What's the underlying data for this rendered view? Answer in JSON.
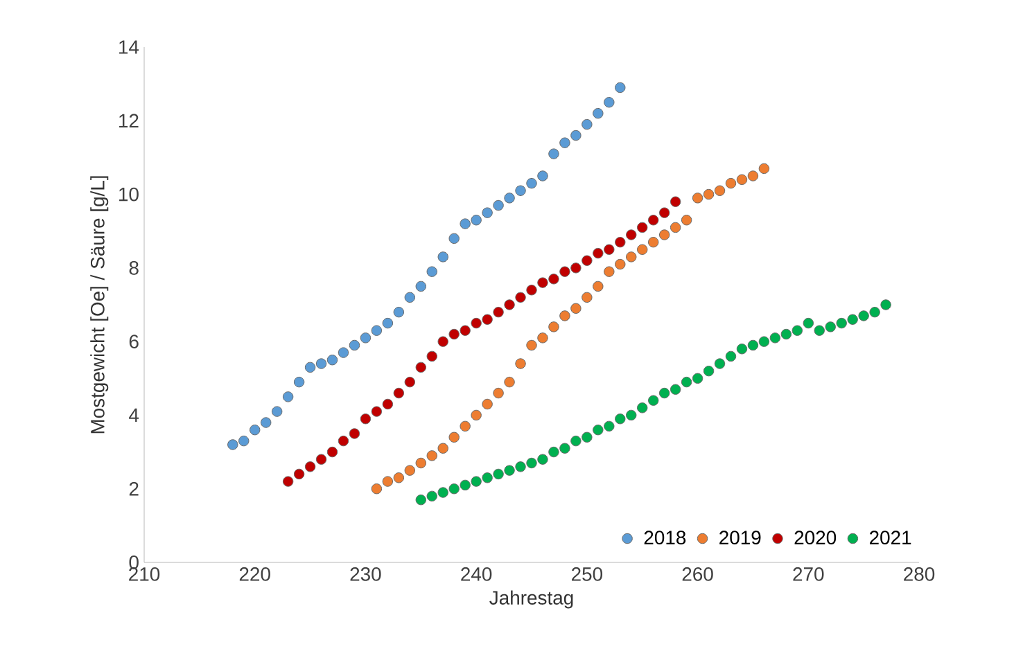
{
  "chart_data": {
    "type": "scatter",
    "xlabel": "Jahrestag",
    "ylabel": "Mostgewicht [Oe] / Säure [g/L]",
    "xlim": [
      210,
      280
    ],
    "xticks": [
      210,
      220,
      230,
      240,
      250,
      260,
      270,
      280
    ],
    "ylim": [
      0,
      14
    ],
    "yticks": [
      0,
      2,
      4,
      6,
      8,
      10,
      12,
      14
    ],
    "grid": false,
    "legend": "bottom right",
    "marker": "circle",
    "series": [
      {
        "name": "2018",
        "color": "#5b9bd5",
        "x": [
          218,
          219,
          220,
          221,
          222,
          223,
          224,
          225,
          226,
          227,
          228,
          229,
          230,
          231,
          232,
          233,
          234,
          235,
          236,
          237,
          238,
          239,
          240,
          241,
          242,
          243,
          244,
          245,
          246,
          247,
          248,
          249,
          250,
          251,
          252,
          253
        ],
        "values": [
          3.2,
          3.3,
          3.6,
          3.8,
          4.1,
          4.5,
          4.9,
          5.3,
          5.4,
          5.5,
          5.7,
          5.9,
          6.1,
          6.3,
          6.5,
          6.8,
          7.2,
          7.5,
          7.9,
          8.3,
          8.8,
          9.2,
          9.3,
          9.5,
          9.7,
          9.9,
          10.1,
          10.3,
          10.5,
          11.1,
          11.4,
          11.6,
          11.9,
          12.2,
          12.5,
          12.9
        ]
      },
      {
        "name": "2019",
        "color": "#ed7d31",
        "x": [
          231,
          232,
          233,
          234,
          235,
          236,
          237,
          238,
          239,
          240,
          241,
          242,
          243,
          244,
          245,
          246,
          247,
          248,
          249,
          250,
          251,
          252,
          253,
          254,
          255,
          256,
          257,
          258,
          259,
          260,
          261,
          262,
          263,
          264,
          265,
          266
        ],
        "values": [
          2.0,
          2.2,
          2.3,
          2.5,
          2.7,
          2.9,
          3.1,
          3.4,
          3.7,
          4.0,
          4.3,
          4.6,
          4.9,
          5.4,
          5.9,
          6.1,
          6.4,
          6.7,
          6.9,
          7.2,
          7.5,
          7.9,
          8.1,
          8.3,
          8.5,
          8.7,
          8.9,
          9.1,
          9.3,
          9.9,
          10.0,
          10.1,
          10.3,
          10.4,
          10.5,
          10.7
        ]
      },
      {
        "name": "2020",
        "color": "#c00000",
        "x": [
          223,
          224,
          225,
          226,
          227,
          228,
          229,
          230,
          231,
          232,
          233,
          234,
          235,
          236,
          237,
          238,
          239,
          240,
          241,
          242,
          243,
          244,
          245,
          246,
          247,
          248,
          249,
          250,
          251,
          252,
          253,
          254,
          255,
          256,
          257,
          258
        ],
        "values": [
          2.2,
          2.4,
          2.6,
          2.8,
          3.0,
          3.3,
          3.5,
          3.9,
          4.1,
          4.3,
          4.6,
          4.9,
          5.3,
          5.6,
          6.0,
          6.2,
          6.3,
          6.5,
          6.6,
          6.8,
          7.0,
          7.2,
          7.4,
          7.6,
          7.7,
          7.9,
          8.0,
          8.2,
          8.4,
          8.5,
          8.7,
          8.9,
          9.1,
          9.3,
          9.5,
          9.8
        ]
      },
      {
        "name": "2021",
        "color": "#00b050",
        "x": [
          235,
          236,
          237,
          238,
          239,
          240,
          241,
          242,
          243,
          244,
          245,
          246,
          247,
          248,
          249,
          250,
          251,
          252,
          253,
          254,
          255,
          256,
          257,
          258,
          259,
          260,
          261,
          262,
          263,
          264,
          265,
          266,
          267,
          268,
          269,
          270,
          271,
          272,
          273,
          274,
          275,
          276,
          277
        ],
        "values": [
          1.7,
          1.8,
          1.9,
          2.0,
          2.1,
          2.2,
          2.3,
          2.4,
          2.5,
          2.6,
          2.7,
          2.8,
          3.0,
          3.1,
          3.3,
          3.4,
          3.6,
          3.7,
          3.9,
          4.0,
          4.2,
          4.4,
          4.6,
          4.7,
          4.9,
          5.0,
          5.2,
          5.4,
          5.6,
          5.8,
          5.9,
          6.0,
          6.1,
          6.2,
          6.3,
          6.5,
          6.3,
          6.4,
          6.5,
          6.6,
          6.7,
          6.8,
          7.0
        ]
      }
    ]
  }
}
